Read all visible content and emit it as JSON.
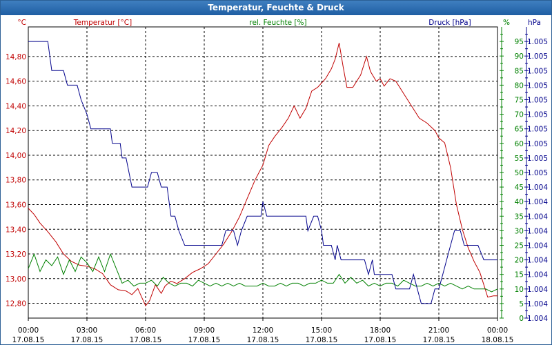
{
  "window": {
    "title": "Temperatur, Feuchte & Druck"
  },
  "chart_data": {
    "type": "line",
    "title": "Temperatur, Feuchte & Druck",
    "x": {
      "range_hours": [
        0,
        24
      ],
      "ticks": [
        {
          "h": 0,
          "time": "00:00",
          "date": "17.08.15"
        },
        {
          "h": 3,
          "time": "03:00",
          "date": "17.08.15"
        },
        {
          "h": 6,
          "time": "06:00",
          "date": "17.08.15"
        },
        {
          "h": 9,
          "time": "09:00",
          "date": "17.08.15"
        },
        {
          "h": 12,
          "time": "12:00",
          "date": "17.08.15"
        },
        {
          "h": 15,
          "time": "15:00",
          "date": "17.08.15"
        },
        {
          "h": 18,
          "time": "18:00",
          "date": "17.08.15"
        },
        {
          "h": 21,
          "time": "21:00",
          "date": "17.08.15"
        },
        {
          "h": 24,
          "time": "00:00",
          "date": "18.08.15"
        }
      ]
    },
    "axes": {
      "temperature": {
        "label": "Temperatur [°C]",
        "unit": "°C",
        "color": "#c00000",
        "ylim": [
          12.68,
          15.04
        ],
        "ticks": [
          "12,80",
          "13,00",
          "13,20",
          "13,40",
          "13,60",
          "13,80",
          "14,00",
          "14,20",
          "14,40",
          "14,60",
          "14,80"
        ],
        "tick_values": [
          12.8,
          13.0,
          13.2,
          13.4,
          13.6,
          13.8,
          14.0,
          14.2,
          14.4,
          14.6,
          14.8
        ]
      },
      "humidity": {
        "label": "rel. Feuchte [%]",
        "unit": "%",
        "color": "#008000",
        "ylim": [
          0,
          100
        ],
        "ticks": [
          "0",
          "5",
          "10",
          "15",
          "20",
          "25",
          "30",
          "35",
          "40",
          "45",
          "50",
          "55",
          "60",
          "65",
          "70",
          "75",
          "80",
          "85",
          "90",
          "95"
        ],
        "tick_values": [
          0,
          5,
          10,
          15,
          20,
          25,
          30,
          35,
          40,
          45,
          50,
          55,
          60,
          65,
          70,
          75,
          80,
          85,
          90,
          95
        ]
      },
      "pressure": {
        "label": "Druck [hPa]",
        "unit": "hPa",
        "color": "#00008b",
        "ticks": [
          "1.004",
          "1.004",
          "1.004",
          "1.004",
          "1.004",
          "1.004",
          "1.004",
          "1.004",
          "1.004",
          "1.004",
          "1.005",
          "1.005",
          "1.005",
          "1.005",
          "1.005",
          "1.005",
          "1.005",
          "1.005",
          "1.005",
          "1.005"
        ],
        "tick_values": [
          0,
          5,
          10,
          15,
          20,
          25,
          30,
          35,
          40,
          45,
          50,
          55,
          60,
          65,
          70,
          75,
          80,
          85,
          90,
          95
        ],
        "note": "pressure series expressed in relative units (0-100) against its own axis"
      }
    },
    "series": [
      {
        "name": "Temperatur [°C]",
        "axis": "temperature",
        "color": "#c00000",
        "points": [
          [
            0,
            13.57
          ],
          [
            0.3,
            13.52
          ],
          [
            0.6,
            13.45
          ],
          [
            1.0,
            13.38
          ],
          [
            1.4,
            13.3
          ],
          [
            1.8,
            13.2
          ],
          [
            2.2,
            13.14
          ],
          [
            2.6,
            13.11
          ],
          [
            3.0,
            13.1
          ],
          [
            3.4,
            13.08
          ],
          [
            3.8,
            13.04
          ],
          [
            4.2,
            12.95
          ],
          [
            4.6,
            12.91
          ],
          [
            5.0,
            12.9
          ],
          [
            5.3,
            12.87
          ],
          [
            5.6,
            12.92
          ],
          [
            5.8,
            12.85
          ],
          [
            6.0,
            12.78
          ],
          [
            6.2,
            12.82
          ],
          [
            6.5,
            12.95
          ],
          [
            6.8,
            12.88
          ],
          [
            7.0,
            12.94
          ],
          [
            7.3,
            12.98
          ],
          [
            7.6,
            12.96
          ],
          [
            8.0,
            13.0
          ],
          [
            8.4,
            13.05
          ],
          [
            8.8,
            13.08
          ],
          [
            9.2,
            13.12
          ],
          [
            9.6,
            13.2
          ],
          [
            10.0,
            13.28
          ],
          [
            10.4,
            13.38
          ],
          [
            10.8,
            13.5
          ],
          [
            11.2,
            13.65
          ],
          [
            11.6,
            13.8
          ],
          [
            12.0,
            13.92
          ],
          [
            12.3,
            14.08
          ],
          [
            12.6,
            14.15
          ],
          [
            13.0,
            14.23
          ],
          [
            13.3,
            14.3
          ],
          [
            13.6,
            14.4
          ],
          [
            13.9,
            14.3
          ],
          [
            14.2,
            14.38
          ],
          [
            14.5,
            14.52
          ],
          [
            14.8,
            14.55
          ],
          [
            15.2,
            14.62
          ],
          [
            15.5,
            14.7
          ],
          [
            15.7,
            14.78
          ],
          [
            15.9,
            14.91
          ],
          [
            16.1,
            14.72
          ],
          [
            16.3,
            14.55
          ],
          [
            16.6,
            14.55
          ],
          [
            17.0,
            14.65
          ],
          [
            17.3,
            14.8
          ],
          [
            17.5,
            14.68
          ],
          [
            17.8,
            14.6
          ],
          [
            18.0,
            14.62
          ],
          [
            18.2,
            14.56
          ],
          [
            18.5,
            14.62
          ],
          [
            18.8,
            14.6
          ],
          [
            19.2,
            14.5
          ],
          [
            19.6,
            14.4
          ],
          [
            20.0,
            14.3
          ],
          [
            20.4,
            14.26
          ],
          [
            20.8,
            14.2
          ],
          [
            21.0,
            14.14
          ],
          [
            21.3,
            14.1
          ],
          [
            21.6,
            13.9
          ],
          [
            21.9,
            13.6
          ],
          [
            22.2,
            13.4
          ],
          [
            22.5,
            13.25
          ],
          [
            22.8,
            13.14
          ],
          [
            23.1,
            13.05
          ],
          [
            23.3,
            12.95
          ],
          [
            23.5,
            12.85
          ],
          [
            23.8,
            12.86
          ],
          [
            24.0,
            12.86
          ]
        ]
      },
      {
        "name": "rel. Feuchte [%]",
        "axis": "humidity",
        "color": "#008000",
        "points": [
          [
            0,
            17
          ],
          [
            0.3,
            22
          ],
          [
            0.6,
            16
          ],
          [
            0.9,
            20
          ],
          [
            1.2,
            18
          ],
          [
            1.5,
            21
          ],
          [
            1.8,
            15
          ],
          [
            2.1,
            20
          ],
          [
            2.4,
            16
          ],
          [
            2.7,
            21
          ],
          [
            3.0,
            19
          ],
          [
            3.3,
            16
          ],
          [
            3.6,
            21
          ],
          [
            3.9,
            16
          ],
          [
            4.2,
            22
          ],
          [
            4.5,
            17
          ],
          [
            4.8,
            12
          ],
          [
            5.1,
            13
          ],
          [
            5.4,
            11
          ],
          [
            5.7,
            12
          ],
          [
            6.0,
            12
          ],
          [
            6.3,
            13
          ],
          [
            6.6,
            11
          ],
          [
            6.9,
            14
          ],
          [
            7.2,
            12
          ],
          [
            7.5,
            11
          ],
          [
            7.8,
            12
          ],
          [
            8.1,
            12
          ],
          [
            8.4,
            11
          ],
          [
            8.7,
            13
          ],
          [
            9.0,
            12
          ],
          [
            9.3,
            11
          ],
          [
            9.6,
            12
          ],
          [
            9.9,
            11
          ],
          [
            10.2,
            12
          ],
          [
            10.5,
            11
          ],
          [
            10.8,
            12
          ],
          [
            11.1,
            11
          ],
          [
            11.4,
            11
          ],
          [
            11.7,
            11
          ],
          [
            12.0,
            12
          ],
          [
            12.3,
            11
          ],
          [
            12.6,
            11
          ],
          [
            12.9,
            12
          ],
          [
            13.2,
            11
          ],
          [
            13.5,
            12
          ],
          [
            13.8,
            12
          ],
          [
            14.1,
            11
          ],
          [
            14.4,
            12
          ],
          [
            14.7,
            12
          ],
          [
            15.0,
            13
          ],
          [
            15.3,
            12
          ],
          [
            15.6,
            12
          ],
          [
            15.9,
            15
          ],
          [
            16.2,
            12
          ],
          [
            16.5,
            14
          ],
          [
            16.8,
            12
          ],
          [
            17.1,
            13
          ],
          [
            17.4,
            11
          ],
          [
            17.7,
            12
          ],
          [
            18.0,
            11
          ],
          [
            18.3,
            12
          ],
          [
            18.6,
            12
          ],
          [
            18.9,
            11
          ],
          [
            19.2,
            13
          ],
          [
            19.5,
            12
          ],
          [
            19.8,
            11
          ],
          [
            20.1,
            11
          ],
          [
            20.4,
            12
          ],
          [
            20.7,
            11
          ],
          [
            21.0,
            12
          ],
          [
            21.3,
            11
          ],
          [
            21.6,
            12
          ],
          [
            21.9,
            11
          ],
          [
            22.2,
            10
          ],
          [
            22.5,
            11
          ],
          [
            22.8,
            10
          ],
          [
            23.1,
            10
          ],
          [
            23.4,
            10
          ],
          [
            23.7,
            9
          ],
          [
            24.0,
            10
          ]
        ]
      },
      {
        "name": "Druck [hPa]",
        "axis": "pressure",
        "color": "#00008b",
        "points": [
          [
            0,
            95
          ],
          [
            1.0,
            95
          ],
          [
            1.2,
            85
          ],
          [
            1.8,
            85
          ],
          [
            2.0,
            80
          ],
          [
            2.5,
            80
          ],
          [
            2.7,
            75
          ],
          [
            3.0,
            70
          ],
          [
            3.2,
            65
          ],
          [
            4.2,
            65
          ],
          [
            4.3,
            60
          ],
          [
            4.7,
            60
          ],
          [
            4.8,
            55
          ],
          [
            5.0,
            55
          ],
          [
            5.3,
            45
          ],
          [
            6.1,
            45
          ],
          [
            6.3,
            50
          ],
          [
            6.6,
            50
          ],
          [
            6.8,
            45
          ],
          [
            7.1,
            45
          ],
          [
            7.3,
            35
          ],
          [
            7.5,
            35
          ],
          [
            7.7,
            30
          ],
          [
            8.0,
            25
          ],
          [
            9.9,
            25
          ],
          [
            10.1,
            30
          ],
          [
            10.5,
            30
          ],
          [
            10.7,
            25
          ],
          [
            10.9,
            30
          ],
          [
            11.2,
            35
          ],
          [
            11.9,
            35
          ],
          [
            12.0,
            40
          ],
          [
            12.2,
            35
          ],
          [
            14.2,
            35
          ],
          [
            14.3,
            30
          ],
          [
            14.6,
            35
          ],
          [
            14.8,
            35
          ],
          [
            15.0,
            30
          ],
          [
            15.1,
            25
          ],
          [
            15.5,
            25
          ],
          [
            15.7,
            20
          ],
          [
            15.8,
            25
          ],
          [
            16.0,
            20
          ],
          [
            17.2,
            20
          ],
          [
            17.4,
            15
          ],
          [
            17.6,
            20
          ],
          [
            17.7,
            15
          ],
          [
            18.6,
            15
          ],
          [
            18.8,
            10
          ],
          [
            19.5,
            10
          ],
          [
            19.7,
            15
          ],
          [
            19.9,
            10
          ],
          [
            20.1,
            5
          ],
          [
            20.6,
            5
          ],
          [
            20.8,
            10
          ],
          [
            21.0,
            10
          ],
          [
            21.2,
            15
          ],
          [
            21.4,
            20
          ],
          [
            21.6,
            25
          ],
          [
            21.8,
            30
          ],
          [
            22.1,
            30
          ],
          [
            22.3,
            25
          ],
          [
            23.0,
            25
          ],
          [
            23.3,
            20
          ],
          [
            24.0,
            20
          ]
        ]
      }
    ]
  }
}
